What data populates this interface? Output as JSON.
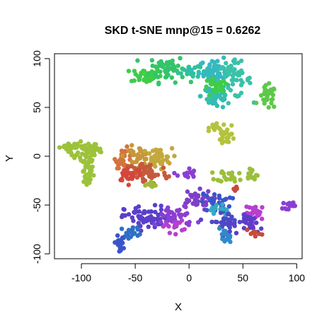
{
  "chart_data": {
    "type": "scatter",
    "title": "SKD t-SNE mnp@15 = 0.6262",
    "xlabel": "X",
    "ylabel": "Y",
    "xlim": [
      -125,
      105
    ],
    "ylim": [
      -105,
      105
    ],
    "xticks": [
      -100,
      -50,
      0,
      50,
      100
    ],
    "yticks": [
      -100,
      -50,
      0,
      50,
      100
    ],
    "xtick_labels": [
      "-100",
      "-50",
      "0",
      "50",
      "100"
    ],
    "ytick_labels": [
      "-100",
      "-50",
      "0",
      "50",
      "100"
    ],
    "grid": false,
    "legend": "none",
    "clusters": [
      {
        "color": "#9CC23A",
        "cx": -110,
        "cy": 10,
        "sx": 5,
        "sy": 2,
        "n": 20
      },
      {
        "color": "#9CC23A",
        "cx": -98,
        "cy": 5,
        "sx": 7,
        "sy": 5,
        "n": 30
      },
      {
        "color": "#9CC23A",
        "cx": -95,
        "cy": -14,
        "sx": 3,
        "sy": 10,
        "n": 40
      },
      {
        "color": "#9CC23A",
        "cx": -87,
        "cy": 6,
        "sx": 4,
        "sy": 2,
        "n": 15
      },
      {
        "color": "#3FCC48",
        "cx": -40,
        "cy": 83,
        "sx": 7,
        "sy": 4,
        "n": 45
      },
      {
        "color": "#33C46A",
        "cx": -20,
        "cy": 90,
        "sx": 8,
        "sy": 7,
        "n": 55
      },
      {
        "color": "#2EC29A",
        "cx": 0,
        "cy": 88,
        "sx": 5,
        "sy": 4,
        "n": 20
      },
      {
        "color": "#36B8C0",
        "cx": 25,
        "cy": 87,
        "sx": 8,
        "sy": 6,
        "n": 60
      },
      {
        "color": "#3AC2A8",
        "cx": 40,
        "cy": 78,
        "sx": 9,
        "sy": 9,
        "n": 55
      },
      {
        "color": "#34BCB2",
        "cx": 25,
        "cy": 62,
        "sx": 7,
        "sy": 7,
        "n": 45
      },
      {
        "color": "#3FCC48",
        "cx": 25,
        "cy": 70,
        "sx": 6,
        "sy": 5,
        "n": 25
      },
      {
        "color": "#5EC84A",
        "cx": 73,
        "cy": 60,
        "sx": 4,
        "sy": 6,
        "n": 30
      },
      {
        "color": "#B3C33C",
        "cx": 25,
        "cy": 31,
        "sx": 3,
        "sy": 2,
        "n": 12
      },
      {
        "color": "#B3C33C",
        "cx": 35,
        "cy": 22,
        "sx": 4,
        "sy": 5,
        "n": 25
      },
      {
        "color": "#D3743C",
        "cx": -60,
        "cy": -2,
        "sx": 4,
        "sy": 5,
        "n": 30
      },
      {
        "color": "#C8963A",
        "cx": -48,
        "cy": 0,
        "sx": 6,
        "sy": 5,
        "n": 40
      },
      {
        "color": "#C3A83D",
        "cx": -30,
        "cy": -2,
        "sx": 7,
        "sy": 5,
        "n": 40
      },
      {
        "color": "#C55A3C",
        "cx": -40,
        "cy": -17,
        "sx": 10,
        "sy": 6,
        "n": 60
      },
      {
        "color": "#D5463A",
        "cx": -55,
        "cy": -18,
        "sx": 6,
        "sy": 4,
        "n": 25
      },
      {
        "color": "#A0B83B",
        "cx": -35,
        "cy": -30,
        "sx": 3,
        "sy": 2,
        "n": 10
      },
      {
        "color": "#8A3FD2",
        "cx": -2,
        "cy": -18,
        "sx": 4,
        "sy": 3,
        "n": 15
      },
      {
        "color": "#9BBF3A",
        "cx": 40,
        "cy": -20,
        "sx": 7,
        "sy": 3,
        "n": 25
      },
      {
        "color": "#9BBF3A",
        "cx": 58,
        "cy": -18,
        "sx": 3,
        "sy": 4,
        "n": 12
      },
      {
        "color": "#C64B3B",
        "cx": 42,
        "cy": -33,
        "sx": 2,
        "sy": 2,
        "n": 6
      },
      {
        "color": "#7E3FC8",
        "cx": 5,
        "cy": -45,
        "sx": 8,
        "sy": 5,
        "n": 35
      },
      {
        "color": "#3A55C9",
        "cx": 25,
        "cy": -48,
        "sx": 7,
        "sy": 5,
        "n": 30
      },
      {
        "color": "#34A9C4",
        "cx": 28,
        "cy": -55,
        "sx": 4,
        "sy": 4,
        "n": 15
      },
      {
        "color": "#5A3FC9",
        "cx": -40,
        "cy": -63,
        "sx": 10,
        "sy": 6,
        "n": 60
      },
      {
        "color": "#8A3FD2",
        "cx": -12,
        "cy": -62,
        "sx": 9,
        "sy": 6,
        "n": 40
      },
      {
        "color": "#B73FCF",
        "cx": -15,
        "cy": -72,
        "sx": 5,
        "sy": 3,
        "n": 15
      },
      {
        "color": "#2F6FC8",
        "cx": -53,
        "cy": -78,
        "sx": 5,
        "sy": 3,
        "n": 20
      },
      {
        "color": "#3A55C9",
        "cx": -65,
        "cy": -90,
        "sx": 2,
        "sy": 4,
        "n": 20
      },
      {
        "color": "#4F48C6",
        "cx": 35,
        "cy": -67,
        "sx": 8,
        "sy": 5,
        "n": 35
      },
      {
        "color": "#2F8ACB",
        "cx": 33,
        "cy": -83,
        "sx": 3,
        "sy": 4,
        "n": 15
      },
      {
        "color": "#B73FCF",
        "cx": 62,
        "cy": -58,
        "sx": 5,
        "sy": 4,
        "n": 30
      },
      {
        "color": "#5A3FC9",
        "cx": 58,
        "cy": -70,
        "sx": 5,
        "sy": 5,
        "n": 25
      },
      {
        "color": "#C64B3B",
        "cx": 60,
        "cy": -78,
        "sx": 3,
        "sy": 2,
        "n": 8
      },
      {
        "color": "#8A3FD2",
        "cx": 93,
        "cy": -50,
        "sx": 3,
        "sy": 2,
        "n": 15
      }
    ]
  }
}
